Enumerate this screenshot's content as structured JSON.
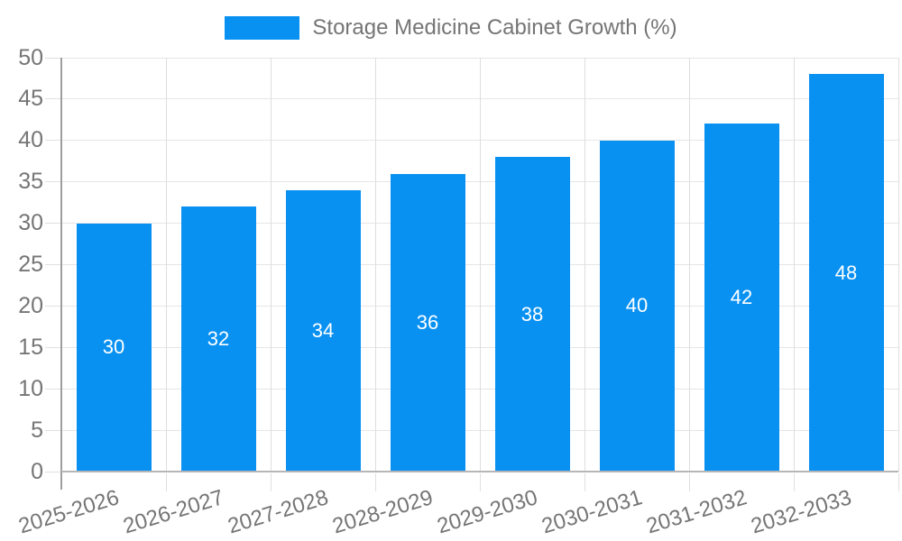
{
  "chart_data": {
    "type": "bar",
    "title": "Storage Medicine Cabinet Growth (%)",
    "legend": {
      "position": "top-center",
      "entries": [
        {
          "label": "Storage Medicine Cabinet Growth (%)",
          "color": "#0991f2"
        }
      ]
    },
    "categories": [
      "2025-2026",
      "2026-2027",
      "2027-2028",
      "2028-2029",
      "2029-2030",
      "2030-2031",
      "2031-2032",
      "2032-2033"
    ],
    "values": [
      30,
      32,
      34,
      36,
      38,
      40,
      42,
      48
    ],
    "bar_value_labels": [
      "30",
      "32",
      "34",
      "36",
      "38",
      "40",
      "42",
      "48"
    ],
    "xlabel": "",
    "ylabel": "",
    "ylim": [
      0,
      50
    ],
    "yticks": [
      0,
      5,
      10,
      15,
      20,
      25,
      30,
      35,
      40,
      45,
      50
    ],
    "grid": true,
    "colors": {
      "bar": "#0991f2",
      "bar_label_text": "#ffffff",
      "axis_text": "#757575",
      "grid_horizontal": "#e6e6e6",
      "grid_vertical": "#dedede",
      "axis_line_y": "#9e9e9e",
      "axis_line_x": "#b6b6b6"
    }
  }
}
